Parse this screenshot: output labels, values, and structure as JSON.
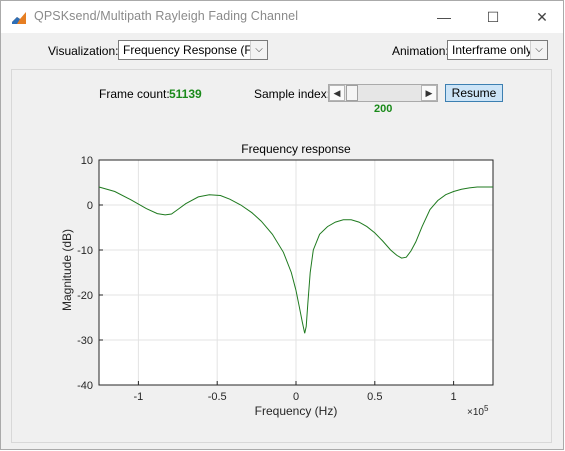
{
  "window": {
    "title": "QPSKsend/Multipath Rayleigh Fading Channel",
    "controls": {
      "minimize": "—",
      "maximize": "☐",
      "close": "✕"
    }
  },
  "toolbar": {
    "visualization_label": "Visualization:",
    "visualization_value": "Frequency Response (F...",
    "animation_label": "Animation:",
    "animation_value": "Interframe only"
  },
  "status": {
    "frame_count_label": "Frame count:",
    "frame_count_value": "51139",
    "sample_index_label": "Sample index:",
    "sample_index_value": "200",
    "resume_label": "Resume"
  },
  "colors": {
    "accent_green": "#1a8a1a",
    "curve": "#1f7a1f"
  },
  "chart_data": {
    "type": "line",
    "title": "Frequency response",
    "xlabel": "Frequency (Hz)",
    "ylabel": "Magnitude (dB)",
    "x_exponent_label": "×10",
    "x_exponent_power": "5",
    "xlim": [
      -1.25,
      1.25
    ],
    "ylim": [
      -40,
      10
    ],
    "xticks": [
      -1,
      -0.5,
      0,
      0.5,
      1
    ],
    "xtick_labels": [
      "-1",
      "-0.5",
      "0",
      "0.5",
      "1"
    ],
    "yticks": [
      10,
      0,
      -10,
      -20,
      -30,
      -40
    ],
    "ytick_labels": [
      "10",
      "0",
      "-10",
      "-20",
      "-30",
      "-40"
    ],
    "grid": true,
    "series": [
      {
        "x": [
          -1.25,
          -1.15,
          -1.05,
          -0.95,
          -0.88,
          -0.83,
          -0.79,
          -0.75,
          -0.7,
          -0.62,
          -0.55,
          -0.48,
          -0.42,
          -0.35,
          -0.28,
          -0.22,
          -0.15,
          -0.08,
          -0.03,
          0.0,
          0.02,
          0.04,
          0.055,
          0.065,
          0.075,
          0.09,
          0.11,
          0.15,
          0.2,
          0.25,
          0.3,
          0.35,
          0.4,
          0.45,
          0.5,
          0.55,
          0.6,
          0.64,
          0.67,
          0.7,
          0.73,
          0.76,
          0.8,
          0.85,
          0.9,
          0.95,
          1.0,
          1.05,
          1.1,
          1.15,
          1.2,
          1.25
        ],
        "y": [
          4.0,
          3.0,
          1.2,
          -0.8,
          -1.9,
          -2.2,
          -2.0,
          -1.0,
          0.3,
          1.8,
          2.3,
          2.1,
          1.3,
          0.0,
          -1.7,
          -3.6,
          -6.5,
          -10.5,
          -15.0,
          -19.0,
          -22.5,
          -26.0,
          -28.5,
          -27.0,
          -22.0,
          -15.0,
          -10.0,
          -6.5,
          -4.8,
          -3.8,
          -3.3,
          -3.3,
          -3.8,
          -4.8,
          -6.2,
          -8.0,
          -10.0,
          -11.2,
          -11.8,
          -11.6,
          -10.2,
          -8.2,
          -4.8,
          -1.0,
          1.0,
          2.3,
          3.0,
          3.5,
          3.8,
          4.0,
          4.0,
          4.0
        ]
      }
    ]
  }
}
